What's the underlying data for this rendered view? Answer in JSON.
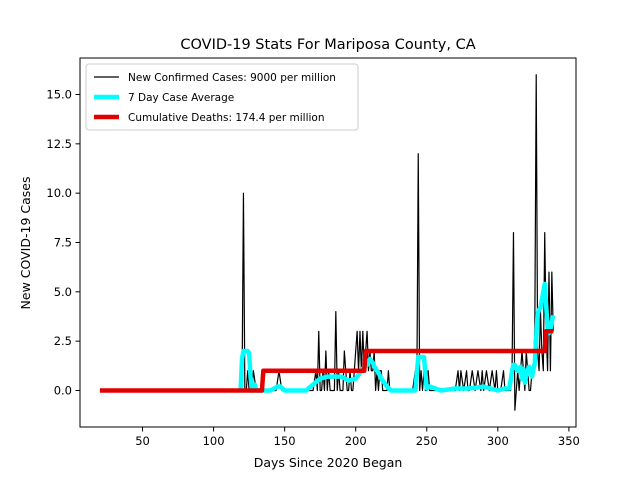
{
  "chart_data": {
    "type": "line",
    "title": "COVID-19 Stats For Mariposa County, CA",
    "xlabel": "Days Since 2020 Began",
    "ylabel": "New COVID-19 Cases",
    "xlim": [
      6,
      355
    ],
    "ylim": [
      -1.85,
      16.85
    ],
    "xticks": [
      50,
      100,
      150,
      200,
      250,
      300,
      350
    ],
    "xtick_labels": [
      "50",
      "100",
      "150",
      "200",
      "250",
      "300",
      "350"
    ],
    "yticks": [
      0,
      2.5,
      5,
      7.5,
      10,
      12.5,
      15
    ],
    "ytick_labels": [
      "0.0",
      "2.5",
      "5.0",
      "7.5",
      "10.0",
      "12.5",
      "15.0"
    ],
    "grid": false,
    "legend_position": "upper-left",
    "series": [
      {
        "name": "New Confirmed Cases: 9000 per million",
        "color": "#000000",
        "x": [
          20,
          117,
          118,
          119,
          120,
          121,
          122,
          123,
          124,
          125,
          126,
          127,
          128,
          130,
          140,
          144,
          146,
          148,
          150,
          160,
          165,
          170,
          172,
          173,
          174,
          175,
          176,
          177,
          178,
          179,
          180,
          181,
          182,
          183,
          184,
          185,
          186,
          187,
          188,
          189,
          190,
          191,
          192,
          193,
          194,
          195,
          196,
          197,
          198,
          199,
          200,
          201,
          202,
          203,
          204,
          205,
          206,
          207,
          208,
          209,
          210,
          211,
          212,
          213,
          214,
          215,
          216,
          217,
          218,
          219,
          220,
          221,
          222,
          223,
          224,
          225,
          230,
          240,
          242,
          243,
          244,
          245,
          246,
          247,
          248,
          249,
          250,
          251,
          252,
          253,
          254,
          255,
          260,
          265,
          270,
          272,
          273,
          274,
          276,
          278,
          279,
          280,
          282,
          284,
          286,
          288,
          289,
          290,
          292,
          294,
          296,
          298,
          299,
          300,
          302,
          304,
          305,
          306,
          307,
          308,
          309,
          310,
          311,
          312,
          313,
          314,
          315,
          316,
          317,
          318,
          319,
          320,
          321,
          322,
          323,
          324,
          325,
          326,
          327,
          328,
          329,
          330,
          331,
          332,
          333,
          334,
          335,
          336,
          337,
          338,
          339
        ],
        "y": [
          0,
          0,
          0,
          1,
          0,
          10,
          0,
          0,
          1,
          0,
          0,
          0,
          1,
          0,
          0,
          0,
          1,
          0,
          0,
          0,
          0,
          0,
          1,
          0,
          3,
          0,
          0,
          1,
          0,
          2,
          0,
          1,
          0,
          0,
          0,
          0,
          4,
          0,
          1,
          0,
          0,
          0,
          2,
          1,
          0,
          0,
          1,
          0,
          0,
          1,
          2,
          3,
          1,
          3,
          1,
          3,
          1,
          2,
          3,
          1,
          2,
          1,
          1,
          2,
          0,
          1,
          0,
          1,
          1,
          0,
          0,
          0,
          0,
          1,
          0,
          0,
          0,
          0,
          1,
          0,
          12,
          0,
          1,
          0,
          1,
          0,
          0,
          1,
          0,
          0,
          0,
          0,
          0,
          0,
          0,
          1,
          0,
          1,
          0,
          1,
          0,
          0,
          1,
          0,
          1,
          0,
          1,
          0,
          1,
          0,
          1,
          0,
          1,
          0,
          0,
          1,
          0,
          0,
          0,
          0,
          0,
          1,
          8,
          -1,
          0,
          1,
          0,
          1,
          2,
          1,
          0,
          2,
          1,
          0,
          0,
          1,
          1,
          3,
          16,
          2,
          1,
          4,
          2,
          1,
          8,
          3,
          1,
          6,
          1,
          6,
          3
        ]
      },
      {
        "name": "7 Day Case Average",
        "color": "#00ffff",
        "x": [
          119,
          120,
          121,
          122,
          124,
          125,
          126,
          127,
          128,
          129,
          130,
          140,
          145,
          147,
          150,
          158,
          165,
          170,
          175,
          180,
          185,
          190,
          195,
          200,
          203,
          205,
          208,
          210,
          212,
          214,
          216,
          218,
          220,
          222,
          225,
          230,
          238,
          242,
          244,
          246,
          248,
          250,
          252,
          260,
          270,
          280,
          290,
          300,
          305,
          308,
          309,
          310,
          311,
          312,
          314,
          316,
          317,
          318,
          319,
          320,
          322,
          324,
          326,
          327,
          328,
          329,
          330,
          331,
          332,
          333,
          334,
          335,
          336,
          337,
          338,
          339
        ],
        "y": [
          0,
          1.6,
          2,
          2,
          2,
          1.9,
          0.7,
          0,
          0,
          0.3,
          0,
          0,
          0.2,
          0.2,
          0,
          0,
          0,
          0.3,
          0.6,
          0.7,
          0.7,
          0.7,
          0.5,
          0.6,
          0.9,
          1.1,
          1.3,
          1.6,
          1.4,
          1.1,
          0.9,
          0.6,
          0.4,
          0.2,
          0,
          0,
          0,
          0,
          1.7,
          1.7,
          1.7,
          0.1,
          0.2,
          0,
          0.1,
          0.1,
          0.2,
          0,
          0.1,
          0.1,
          0.5,
          1,
          1.3,
          1.3,
          1,
          1.2,
          0.6,
          1.1,
          0.4,
          0.8,
          1.2,
          0.7,
          1.4,
          2.7,
          3.9,
          4.1,
          4.2,
          4.6,
          5,
          5.4,
          4.3,
          3.2,
          2.9,
          3.1,
          3.5,
          3.8
        ]
      },
      {
        "name": "Cumulative Deaths: 174.4 per million",
        "color": "#e00000",
        "x": [
          20,
          134,
          135,
          206,
          207,
          328,
          329,
          333,
          334,
          339
        ],
        "y": [
          0,
          0,
          1,
          1,
          2,
          2,
          2,
          2,
          3,
          3
        ]
      }
    ]
  }
}
